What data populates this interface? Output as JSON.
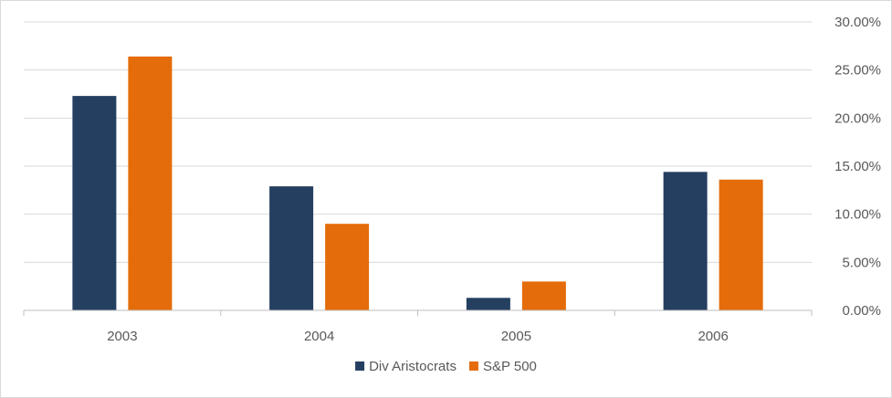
{
  "chart_data": {
    "type": "bar",
    "categories": [
      "2003",
      "2004",
      "2005",
      "2006"
    ],
    "series": [
      {
        "name": "Div Aristocrats",
        "color": "#243f60",
        "values": [
          22.3,
          12.9,
          1.3,
          14.4
        ]
      },
      {
        "name": "S&P 500",
        "color": "#e46c0a",
        "values": [
          26.4,
          9.0,
          3.0,
          13.6
        ]
      }
    ],
    "y_ticks": [
      "0.00%",
      "5.00%",
      "10.00%",
      "15.00%",
      "20.00%",
      "25.00%",
      "30.00%"
    ],
    "ylim": [
      0,
      30
    ],
    "y_axis_side": "right",
    "grid": true,
    "legend_position": "bottom",
    "title": "",
    "xlabel": "",
    "ylabel": ""
  }
}
